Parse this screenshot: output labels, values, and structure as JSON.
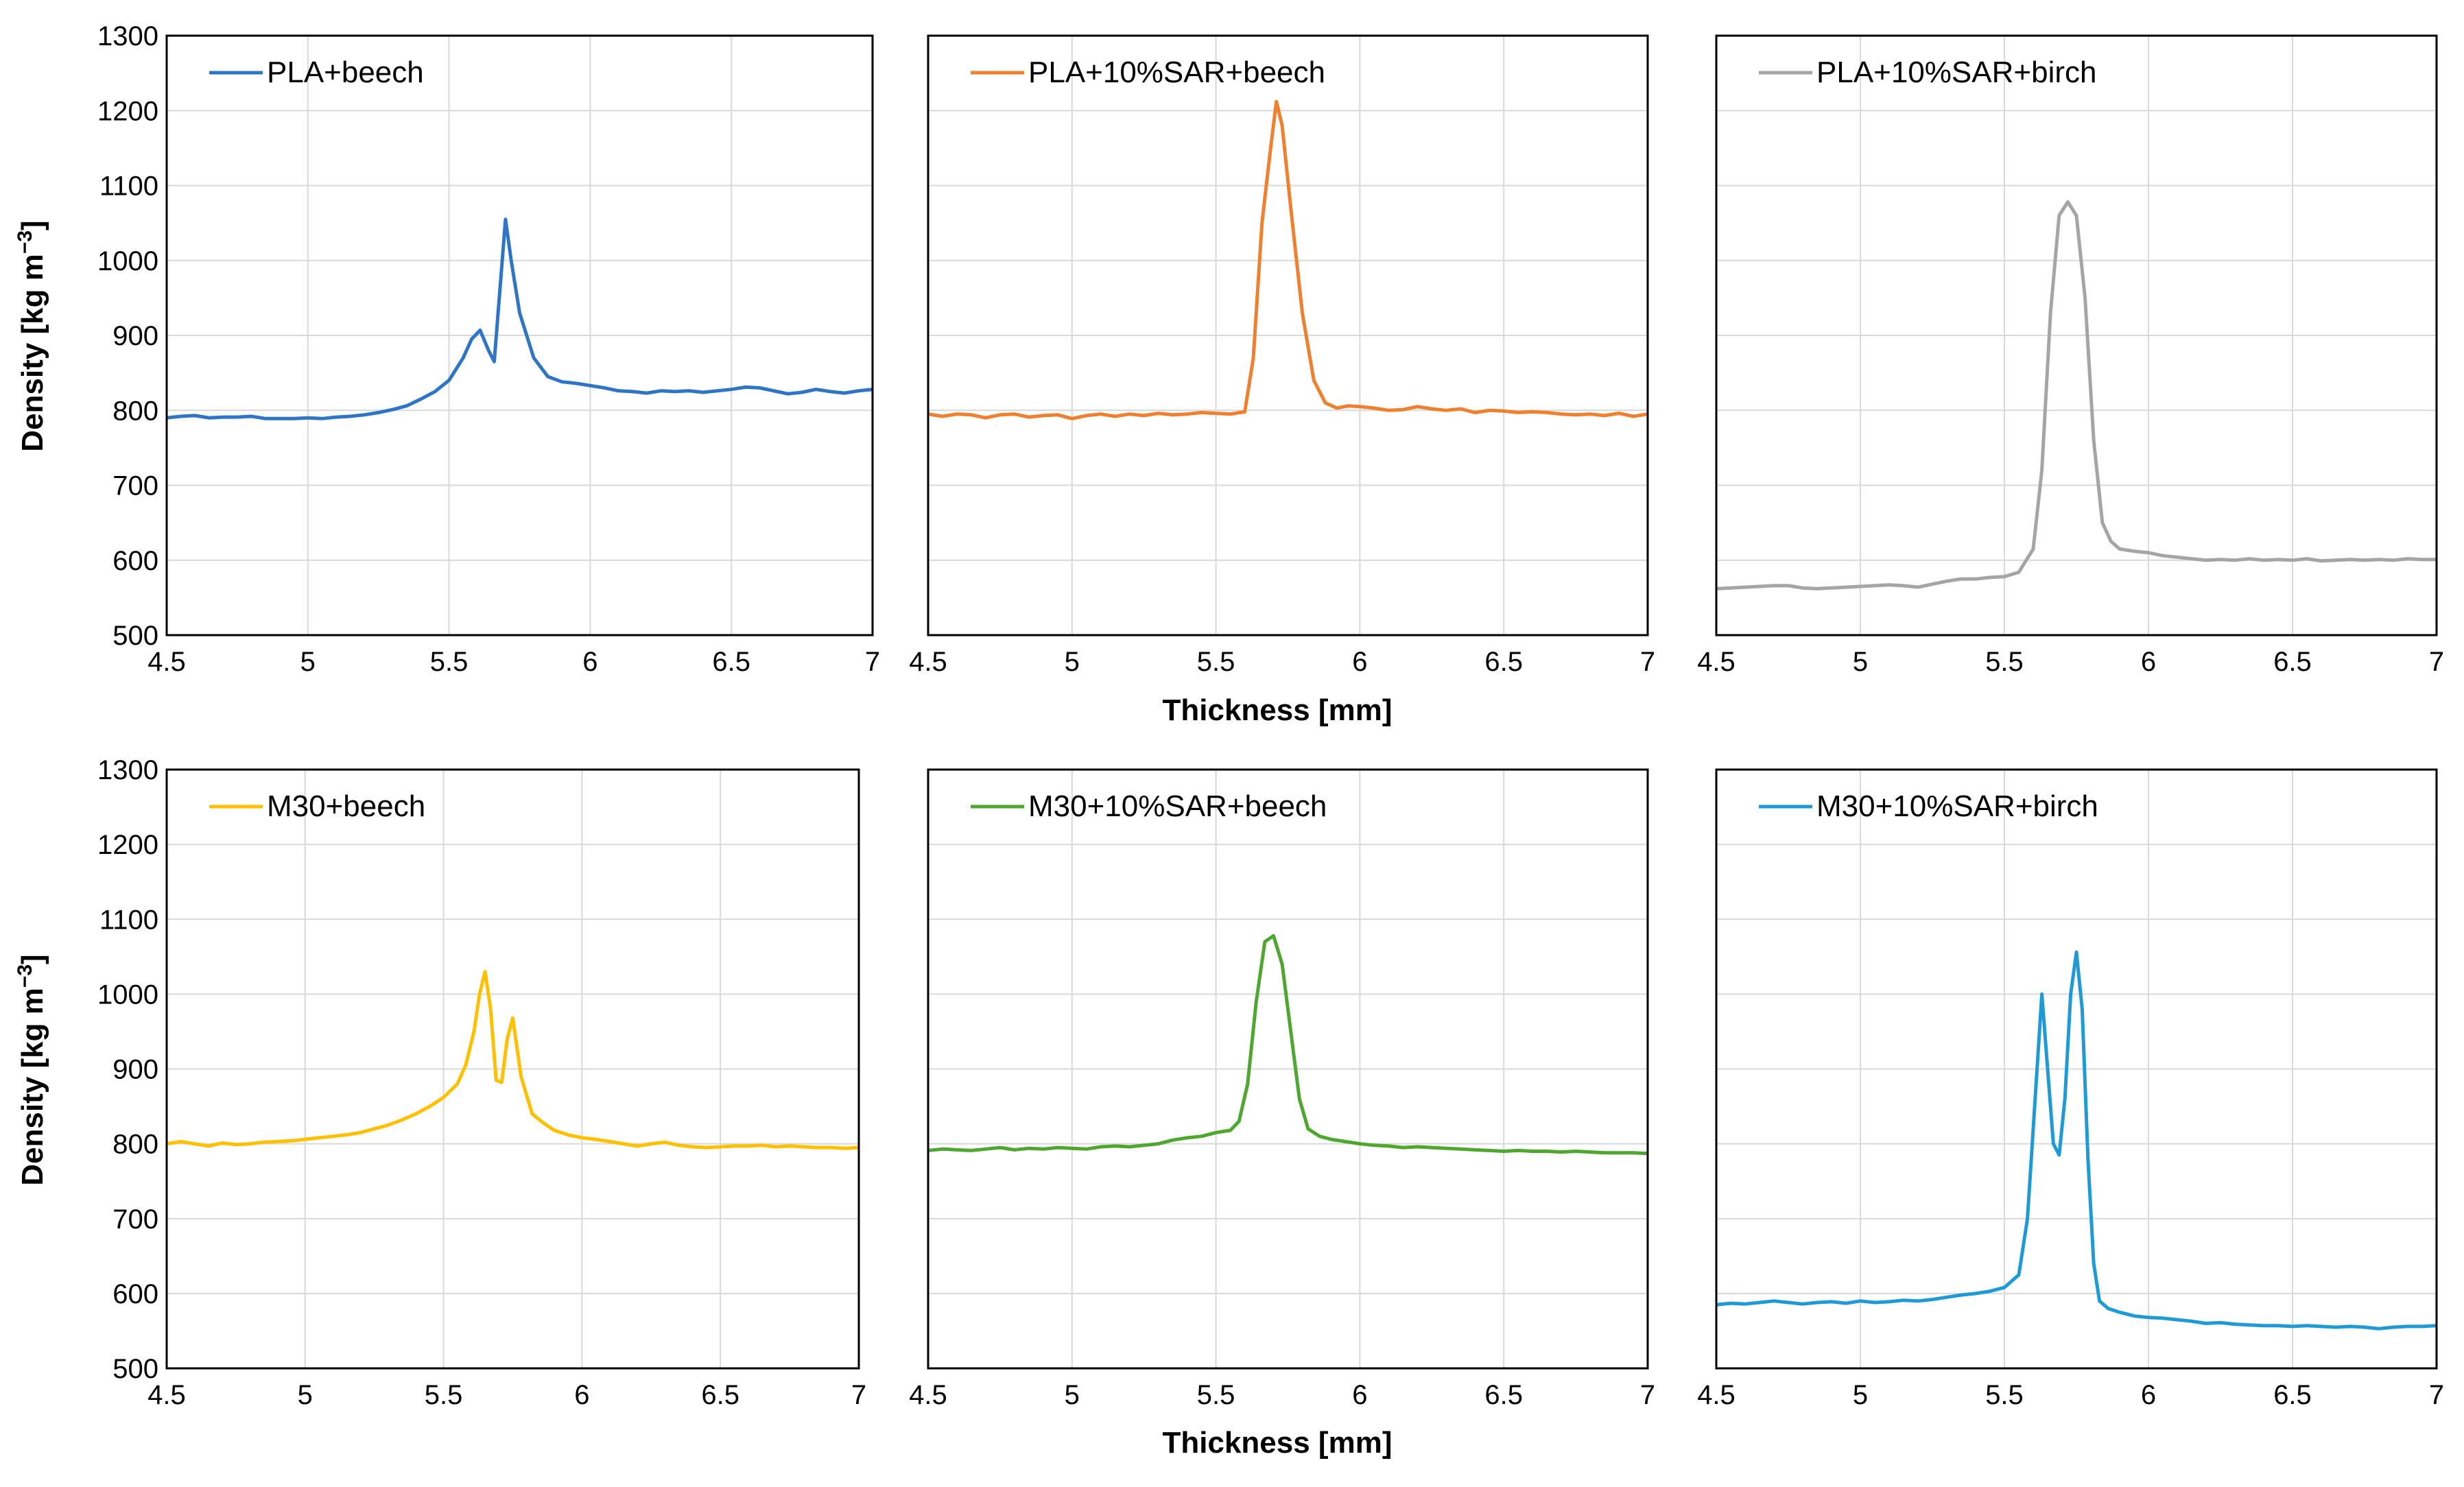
{
  "ylabel_prefix": "Density [kg m",
  "ylabel_exp": "−3",
  "ylabel_suffix": "]",
  "xlabel": "Thickness [mm]",
  "chart_data": [
    {
      "type": "line",
      "legend": "PLA+beech",
      "color": "#2E75C6",
      "xlim": [
        4.5,
        7
      ],
      "ylim": [
        500,
        1300
      ],
      "xticks": [
        "4.5",
        "5",
        "5.5",
        "6",
        "6.5",
        "7"
      ],
      "yticks": [
        "500",
        "600",
        "700",
        "800",
        "900",
        "1000",
        "1100",
        "1200",
        "1300"
      ],
      "grid": true,
      "legend_position": "top-left",
      "points": [
        [
          4.5,
          790
        ],
        [
          4.55,
          792
        ],
        [
          4.6,
          793
        ],
        [
          4.65,
          790
        ],
        [
          4.7,
          791
        ],
        [
          4.75,
          791
        ],
        [
          4.8,
          792
        ],
        [
          4.85,
          789
        ],
        [
          4.9,
          789
        ],
        [
          4.95,
          789
        ],
        [
          5.0,
          790
        ],
        [
          5.05,
          789
        ],
        [
          5.1,
          791
        ],
        [
          5.15,
          792
        ],
        [
          5.2,
          794
        ],
        [
          5.25,
          797
        ],
        [
          5.3,
          801
        ],
        [
          5.35,
          806
        ],
        [
          5.4,
          815
        ],
        [
          5.45,
          825
        ],
        [
          5.5,
          840
        ],
        [
          5.55,
          870
        ],
        [
          5.58,
          895
        ],
        [
          5.61,
          907
        ],
        [
          5.64,
          880
        ],
        [
          5.66,
          865
        ],
        [
          5.68,
          960
        ],
        [
          5.7,
          1055
        ],
        [
          5.72,
          1000
        ],
        [
          5.75,
          930
        ],
        [
          5.8,
          870
        ],
        [
          5.85,
          845
        ],
        [
          5.9,
          838
        ],
        [
          5.95,
          836
        ],
        [
          6.0,
          833
        ],
        [
          6.05,
          830
        ],
        [
          6.1,
          826
        ],
        [
          6.15,
          825
        ],
        [
          6.2,
          823
        ],
        [
          6.25,
          826
        ],
        [
          6.3,
          825
        ],
        [
          6.35,
          826
        ],
        [
          6.4,
          824
        ],
        [
          6.45,
          826
        ],
        [
          6.5,
          828
        ],
        [
          6.55,
          831
        ],
        [
          6.6,
          830
        ],
        [
          6.65,
          826
        ],
        [
          6.7,
          822
        ],
        [
          6.75,
          824
        ],
        [
          6.8,
          828
        ],
        [
          6.85,
          825
        ],
        [
          6.9,
          823
        ],
        [
          6.95,
          826
        ],
        [
          7.0,
          828
        ]
      ]
    },
    {
      "type": "line",
      "legend": "PLA+10%SAR+beech",
      "color": "#F07F2E",
      "xlim": [
        4.5,
        7
      ],
      "ylim": [
        500,
        1300
      ],
      "xticks": [
        "4.5",
        "5",
        "5.5",
        "6",
        "6.5",
        "7"
      ],
      "yticks": [],
      "grid": true,
      "legend_position": "top-left",
      "points": [
        [
          4.5,
          795
        ],
        [
          4.55,
          792
        ],
        [
          4.6,
          795
        ],
        [
          4.65,
          794
        ],
        [
          4.7,
          790
        ],
        [
          4.75,
          794
        ],
        [
          4.8,
          795
        ],
        [
          4.85,
          791
        ],
        [
          4.9,
          793
        ],
        [
          4.95,
          794
        ],
        [
          5.0,
          789
        ],
        [
          5.05,
          793
        ],
        [
          5.1,
          795
        ],
        [
          5.15,
          792
        ],
        [
          5.2,
          795
        ],
        [
          5.25,
          793
        ],
        [
          5.3,
          796
        ],
        [
          5.35,
          794
        ],
        [
          5.4,
          795
        ],
        [
          5.45,
          797
        ],
        [
          5.5,
          796
        ],
        [
          5.55,
          795
        ],
        [
          5.6,
          798
        ],
        [
          5.63,
          870
        ],
        [
          5.66,
          1050
        ],
        [
          5.69,
          1150
        ],
        [
          5.71,
          1212
        ],
        [
          5.73,
          1180
        ],
        [
          5.76,
          1070
        ],
        [
          5.8,
          930
        ],
        [
          5.84,
          840
        ],
        [
          5.88,
          810
        ],
        [
          5.92,
          803
        ],
        [
          5.96,
          806
        ],
        [
          6.0,
          805
        ],
        [
          6.05,
          803
        ],
        [
          6.1,
          800
        ],
        [
          6.15,
          801
        ],
        [
          6.2,
          805
        ],
        [
          6.25,
          802
        ],
        [
          6.3,
          800
        ],
        [
          6.35,
          802
        ],
        [
          6.4,
          797
        ],
        [
          6.45,
          800
        ],
        [
          6.5,
          799
        ],
        [
          6.55,
          797
        ],
        [
          6.6,
          798
        ],
        [
          6.65,
          797
        ],
        [
          6.7,
          795
        ],
        [
          6.75,
          794
        ],
        [
          6.8,
          795
        ],
        [
          6.85,
          793
        ],
        [
          6.9,
          796
        ],
        [
          6.95,
          792
        ],
        [
          7.0,
          795
        ]
      ]
    },
    {
      "type": "line",
      "legend": "PLA+10%SAR+birch",
      "color": "#A5A5A5",
      "xlim": [
        4.5,
        7
      ],
      "ylim": [
        500,
        1300
      ],
      "xticks": [
        "4.5",
        "5",
        "5.5",
        "6",
        "6.5",
        "7"
      ],
      "yticks": [],
      "grid": true,
      "legend_position": "top-left",
      "points": [
        [
          4.5,
          562
        ],
        [
          4.55,
          563
        ],
        [
          4.6,
          564
        ],
        [
          4.65,
          565
        ],
        [
          4.7,
          566
        ],
        [
          4.75,
          566
        ],
        [
          4.8,
          563
        ],
        [
          4.85,
          562
        ],
        [
          4.9,
          563
        ],
        [
          4.95,
          564
        ],
        [
          5.0,
          565
        ],
        [
          5.05,
          566
        ],
        [
          5.1,
          567
        ],
        [
          5.15,
          566
        ],
        [
          5.2,
          564
        ],
        [
          5.25,
          568
        ],
        [
          5.3,
          572
        ],
        [
          5.35,
          575
        ],
        [
          5.4,
          575
        ],
        [
          5.45,
          577
        ],
        [
          5.5,
          578
        ],
        [
          5.55,
          584
        ],
        [
          5.6,
          615
        ],
        [
          5.63,
          720
        ],
        [
          5.66,
          930
        ],
        [
          5.69,
          1060
        ],
        [
          5.72,
          1078
        ],
        [
          5.75,
          1060
        ],
        [
          5.78,
          950
        ],
        [
          5.81,
          760
        ],
        [
          5.84,
          650
        ],
        [
          5.87,
          625
        ],
        [
          5.9,
          615
        ],
        [
          5.95,
          612
        ],
        [
          6.0,
          610
        ],
        [
          6.05,
          606
        ],
        [
          6.1,
          604
        ],
        [
          6.15,
          602
        ],
        [
          6.2,
          600
        ],
        [
          6.25,
          601
        ],
        [
          6.3,
          600
        ],
        [
          6.35,
          602
        ],
        [
          6.4,
          600
        ],
        [
          6.45,
          601
        ],
        [
          6.5,
          600
        ],
        [
          6.55,
          602
        ],
        [
          6.6,
          599
        ],
        [
          6.65,
          600
        ],
        [
          6.7,
          601
        ],
        [
          6.75,
          600
        ],
        [
          6.8,
          601
        ],
        [
          6.85,
          600
        ],
        [
          6.9,
          602
        ],
        [
          6.95,
          601
        ],
        [
          7.0,
          601
        ]
      ]
    },
    {
      "type": "line",
      "legend": "M30+beech",
      "color": "#FFC000",
      "xlim": [
        4.5,
        7
      ],
      "ylim": [
        500,
        1300
      ],
      "xticks": [
        "4.5",
        "5",
        "5.5",
        "6",
        "6.5",
        "7"
      ],
      "yticks": [
        "500",
        "600",
        "700",
        "800",
        "900",
        "1000",
        "1100",
        "1200",
        "1300"
      ],
      "grid": true,
      "legend_position": "top-left",
      "points": [
        [
          4.5,
          800
        ],
        [
          4.55,
          803
        ],
        [
          4.6,
          800
        ],
        [
          4.65,
          797
        ],
        [
          4.7,
          801
        ],
        [
          4.75,
          799
        ],
        [
          4.8,
          800
        ],
        [
          4.85,
          802
        ],
        [
          4.9,
          803
        ],
        [
          4.95,
          804
        ],
        [
          5.0,
          806
        ],
        [
          5.05,
          808
        ],
        [
          5.1,
          810
        ],
        [
          5.15,
          812
        ],
        [
          5.2,
          815
        ],
        [
          5.25,
          820
        ],
        [
          5.3,
          825
        ],
        [
          5.35,
          832
        ],
        [
          5.4,
          840
        ],
        [
          5.45,
          850
        ],
        [
          5.5,
          862
        ],
        [
          5.55,
          880
        ],
        [
          5.58,
          905
        ],
        [
          5.61,
          950
        ],
        [
          5.63,
          1000
        ],
        [
          5.65,
          1030
        ],
        [
          5.67,
          980
        ],
        [
          5.69,
          885
        ],
        [
          5.71,
          882
        ],
        [
          5.73,
          940
        ],
        [
          5.75,
          968
        ],
        [
          5.78,
          890
        ],
        [
          5.82,
          840
        ],
        [
          5.86,
          828
        ],
        [
          5.9,
          818
        ],
        [
          5.95,
          812
        ],
        [
          6.0,
          808
        ],
        [
          6.05,
          806
        ],
        [
          6.1,
          803
        ],
        [
          6.15,
          800
        ],
        [
          6.2,
          797
        ],
        [
          6.25,
          800
        ],
        [
          6.3,
          802
        ],
        [
          6.35,
          798
        ],
        [
          6.4,
          796
        ],
        [
          6.45,
          795
        ],
        [
          6.5,
          796
        ],
        [
          6.55,
          797
        ],
        [
          6.6,
          797
        ],
        [
          6.65,
          798
        ],
        [
          6.7,
          796
        ],
        [
          6.75,
          797
        ],
        [
          6.8,
          796
        ],
        [
          6.85,
          795
        ],
        [
          6.9,
          795
        ],
        [
          6.95,
          794
        ],
        [
          7.0,
          795
        ]
      ]
    },
    {
      "type": "line",
      "legend": "M30+10%SAR+beech",
      "color": "#4EA72E",
      "xlim": [
        4.5,
        7
      ],
      "ylim": [
        500,
        1300
      ],
      "xticks": [
        "4.5",
        "5",
        "5.5",
        "6",
        "6.5",
        "7"
      ],
      "yticks": [],
      "grid": true,
      "legend_position": "top-left",
      "points": [
        [
          4.5,
          791
        ],
        [
          4.55,
          793
        ],
        [
          4.6,
          792
        ],
        [
          4.65,
          791
        ],
        [
          4.7,
          793
        ],
        [
          4.75,
          795
        ],
        [
          4.8,
          792
        ],
        [
          4.85,
          794
        ],
        [
          4.9,
          793
        ],
        [
          4.95,
          795
        ],
        [
          5.0,
          794
        ],
        [
          5.05,
          793
        ],
        [
          5.1,
          796
        ],
        [
          5.15,
          797
        ],
        [
          5.2,
          796
        ],
        [
          5.25,
          798
        ],
        [
          5.3,
          800
        ],
        [
          5.35,
          805
        ],
        [
          5.4,
          808
        ],
        [
          5.45,
          810
        ],
        [
          5.5,
          815
        ],
        [
          5.55,
          818
        ],
        [
          5.58,
          830
        ],
        [
          5.61,
          880
        ],
        [
          5.64,
          990
        ],
        [
          5.67,
          1070
        ],
        [
          5.7,
          1078
        ],
        [
          5.73,
          1040
        ],
        [
          5.76,
          950
        ],
        [
          5.79,
          860
        ],
        [
          5.82,
          820
        ],
        [
          5.86,
          810
        ],
        [
          5.9,
          806
        ],
        [
          5.95,
          803
        ],
        [
          6.0,
          800
        ],
        [
          6.05,
          798
        ],
        [
          6.1,
          797
        ],
        [
          6.15,
          795
        ],
        [
          6.2,
          796
        ],
        [
          6.25,
          795
        ],
        [
          6.3,
          794
        ],
        [
          6.35,
          793
        ],
        [
          6.4,
          792
        ],
        [
          6.45,
          791
        ],
        [
          6.5,
          790
        ],
        [
          6.55,
          791
        ],
        [
          6.6,
          790
        ],
        [
          6.65,
          790
        ],
        [
          6.7,
          789
        ],
        [
          6.75,
          790
        ],
        [
          6.8,
          789
        ],
        [
          6.85,
          788
        ],
        [
          6.9,
          788
        ],
        [
          6.95,
          788
        ],
        [
          7.0,
          787
        ]
      ]
    },
    {
      "type": "line",
      "legend": "M30+10%SAR+birch",
      "color": "#1E9BD7",
      "xlim": [
        4.5,
        7
      ],
      "ylim": [
        500,
        1300
      ],
      "xticks": [
        "4.5",
        "5",
        "5.5",
        "6",
        "6.5",
        "7"
      ],
      "yticks": [],
      "grid": true,
      "legend_position": "top-left",
      "points": [
        [
          4.5,
          585
        ],
        [
          4.55,
          587
        ],
        [
          4.6,
          586
        ],
        [
          4.65,
          588
        ],
        [
          4.7,
          590
        ],
        [
          4.75,
          588
        ],
        [
          4.8,
          586
        ],
        [
          4.85,
          588
        ],
        [
          4.9,
          589
        ],
        [
          4.95,
          587
        ],
        [
          5.0,
          590
        ],
        [
          5.05,
          588
        ],
        [
          5.1,
          589
        ],
        [
          5.15,
          591
        ],
        [
          5.2,
          590
        ],
        [
          5.25,
          592
        ],
        [
          5.3,
          595
        ],
        [
          5.35,
          598
        ],
        [
          5.4,
          600
        ],
        [
          5.45,
          603
        ],
        [
          5.5,
          608
        ],
        [
          5.55,
          625
        ],
        [
          5.58,
          700
        ],
        [
          5.61,
          880
        ],
        [
          5.63,
          1000
        ],
        [
          5.65,
          900
        ],
        [
          5.67,
          800
        ],
        [
          5.69,
          785
        ],
        [
          5.71,
          860
        ],
        [
          5.73,
          1000
        ],
        [
          5.75,
          1056
        ],
        [
          5.77,
          980
        ],
        [
          5.79,
          780
        ],
        [
          5.81,
          640
        ],
        [
          5.83,
          590
        ],
        [
          5.86,
          580
        ],
        [
          5.9,
          575
        ],
        [
          5.95,
          570
        ],
        [
          6.0,
          568
        ],
        [
          6.05,
          567
        ],
        [
          6.1,
          565
        ],
        [
          6.15,
          563
        ],
        [
          6.2,
          560
        ],
        [
          6.25,
          561
        ],
        [
          6.3,
          559
        ],
        [
          6.35,
          558
        ],
        [
          6.4,
          557
        ],
        [
          6.45,
          557
        ],
        [
          6.5,
          556
        ],
        [
          6.55,
          557
        ],
        [
          6.6,
          556
        ],
        [
          6.65,
          555
        ],
        [
          6.7,
          556
        ],
        [
          6.75,
          555
        ],
        [
          6.8,
          553
        ],
        [
          6.85,
          555
        ],
        [
          6.9,
          556
        ],
        [
          6.95,
          556
        ],
        [
          7.0,
          557
        ]
      ]
    }
  ]
}
